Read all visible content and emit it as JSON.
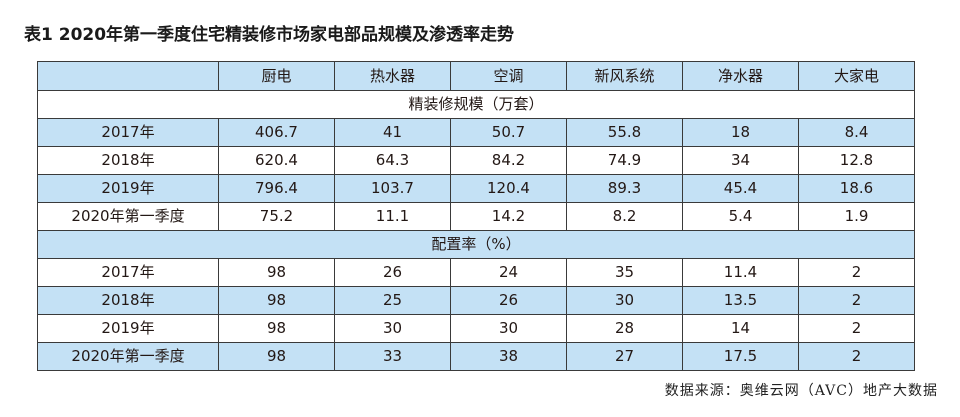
{
  "title": "表1 2020年第一季度住宅精装修市场家电部品规模及渗透率走势",
  "columns": [
    "",
    "厨电",
    "热水器",
    "空调",
    "新风系统",
    "净水器",
    "大家电"
  ],
  "scale": {
    "label": "精装修规模（万套）",
    "rows": [
      {
        "period": "2017年",
        "values": [
          "406.7",
          "41",
          "50.7",
          "55.8",
          "18",
          "8.4"
        ]
      },
      {
        "period": "2018年",
        "values": [
          "620.4",
          "64.3",
          "84.2",
          "74.9",
          "34",
          "12.8"
        ]
      },
      {
        "period": "2019年",
        "values": [
          "796.4",
          "103.7",
          "120.4",
          "89.3",
          "45.4",
          "18.6"
        ]
      },
      {
        "period": "2020年第一季度",
        "values": [
          "75.2",
          "11.1",
          "14.2",
          "8.2",
          "5.4",
          "1.9"
        ]
      }
    ]
  },
  "rate": {
    "label": "配置率（%）",
    "rows": [
      {
        "period": "2017年",
        "values": [
          "98",
          "26",
          "24",
          "35",
          "11.4",
          "2"
        ]
      },
      {
        "period": "2018年",
        "values": [
          "98",
          "25",
          "26",
          "30",
          "13.5",
          "2"
        ]
      },
      {
        "period": "2019年",
        "values": [
          "98",
          "30",
          "30",
          "28",
          "14",
          "2"
        ]
      },
      {
        "period": "2020年第一季度",
        "values": [
          "98",
          "33",
          "38",
          "27",
          "17.5",
          "2"
        ]
      }
    ]
  },
  "source": "数据来源：奥维云网（AVC）地产大数据"
}
